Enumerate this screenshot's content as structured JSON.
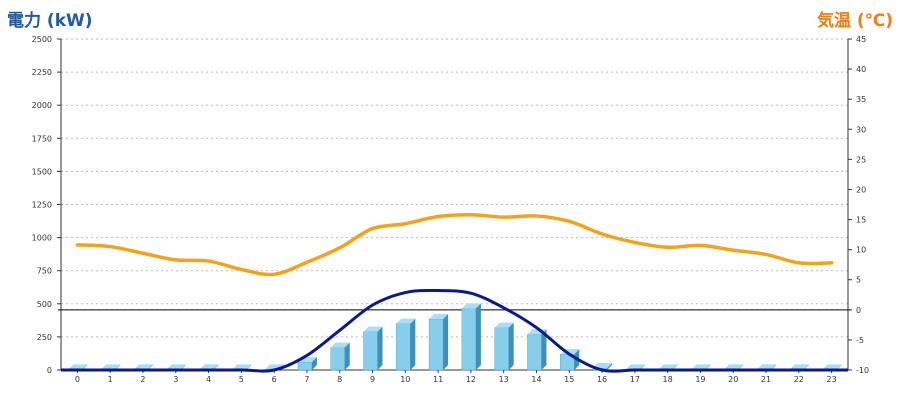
{
  "chart_data": {
    "type": "bar",
    "ylabel_left": "電力 (kW)",
    "ylabel_right": "気温 (℃)",
    "categories": [
      "0",
      "1",
      "2",
      "3",
      "4",
      "5",
      "6",
      "7",
      "8",
      "9",
      "10",
      "11",
      "12",
      "13",
      "14",
      "15",
      "16",
      "17",
      "18",
      "19",
      "20",
      "21",
      "22",
      "23"
    ],
    "left_axis": {
      "ylim": [
        0,
        2500
      ],
      "ticks": [
        0,
        250,
        500,
        750,
        1000,
        1250,
        1500,
        1750,
        2000,
        2250,
        2500
      ]
    },
    "right_axis": {
      "ylim": [
        -10,
        45
      ],
      "ticks": [
        -10,
        -5,
        0,
        5,
        10,
        15,
        20,
        25,
        30,
        35,
        40,
        45
      ]
    },
    "zero_line_temperature": 0,
    "grid": true,
    "series": [
      {
        "kind": "bar",
        "axis": "left",
        "values": [
          5,
          5,
          5,
          5,
          5,
          5,
          5,
          60,
          170,
          290,
          350,
          385,
          465,
          320,
          270,
          120,
          15,
          5,
          5,
          5,
          5,
          5,
          5,
          5
        ],
        "color": "#87ceeb"
      },
      {
        "kind": "line",
        "axis": "left",
        "values": [
          0,
          0,
          0,
          0,
          0,
          0,
          0,
          110,
          300,
          490,
          585,
          600,
          580,
          470,
          320,
          120,
          0,
          0,
          0,
          0,
          0,
          0,
          0,
          0
        ],
        "color": "#0a1a8c"
      },
      {
        "kind": "line",
        "axis": "right",
        "values": [
          10.8,
          10.5,
          9.4,
          8.3,
          8.1,
          6.7,
          5.9,
          7.9,
          10.3,
          13.5,
          14.3,
          15.5,
          15.8,
          15.4,
          15.6,
          14.7,
          12.6,
          11.2,
          10.4,
          10.7,
          9.9,
          9.2,
          7.8,
          7.8
        ],
        "color": "#f5a21b"
      }
    ]
  }
}
